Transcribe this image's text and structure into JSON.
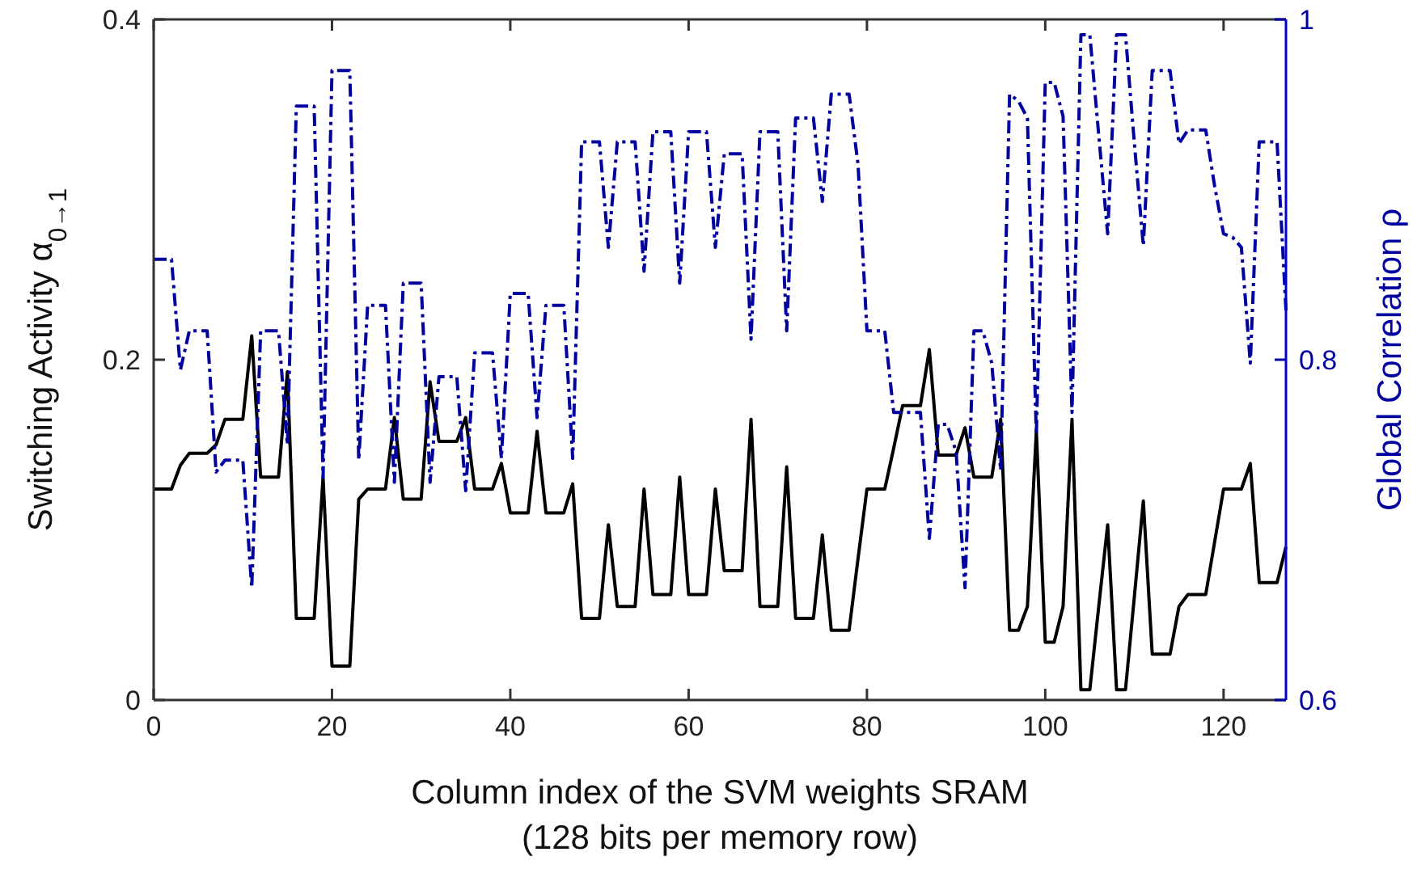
{
  "chart_data": {
    "type": "line",
    "xlabel": "Column index of the SVM weights SRAM\n(128 bits per memory row)",
    "ylabel": "Switching Activity α$_{0→1}$",
    "y2label": "Global Correlation ρ",
    "x": [
      0,
      1,
      2,
      3,
      4,
      5,
      6,
      7,
      8,
      9,
      10,
      11,
      12,
      13,
      14,
      15,
      16,
      17,
      18,
      19,
      20,
      21,
      22,
      23,
      24,
      25,
      26,
      27,
      28,
      29,
      30,
      31,
      32,
      33,
      34,
      35,
      36,
      37,
      38,
      39,
      40,
      41,
      42,
      43,
      44,
      45,
      46,
      47,
      48,
      49,
      50,
      51,
      52,
      53,
      54,
      55,
      56,
      57,
      58,
      59,
      60,
      61,
      62,
      63,
      64,
      65,
      66,
      67,
      68,
      69,
      70,
      71,
      72,
      73,
      74,
      75,
      76,
      77,
      78,
      79,
      80,
      81,
      82,
      83,
      84,
      85,
      86,
      87,
      88,
      89,
      90,
      91,
      92,
      93,
      94,
      95,
      96,
      97,
      98,
      99,
      100,
      101,
      102,
      103,
      104,
      105,
      106,
      107,
      108,
      109,
      110,
      111,
      112,
      113,
      114,
      115,
      116,
      117,
      118,
      119,
      120,
      121,
      122,
      123,
      124,
      125,
      126,
      127
    ],
    "xlim": [
      0,
      127
    ],
    "xticks": [
      0,
      20,
      40,
      60,
      80,
      100,
      120
    ],
    "ylim": [
      0,
      0.4
    ],
    "yticks": [
      0,
      0.2,
      0.4
    ],
    "y2lim": [
      0.6,
      1
    ],
    "y2ticks": [
      0.6,
      0.8,
      1
    ],
    "grid": false,
    "marker": "none",
    "series": [
      {
        "color": "#000000",
        "line_style": "solid",
        "values": [
          0.124,
          0.124,
          0.124,
          0.138,
          0.145,
          0.145,
          0.145,
          0.15,
          0.165,
          0.165,
          0.165,
          0.214,
          0.131,
          0.131,
          0.131,
          0.193,
          0.048,
          0.048,
          0.048,
          0.131,
          0.02,
          0.02,
          0.02,
          0.118,
          0.124,
          0.124,
          0.124,
          0.166,
          0.118,
          0.118,
          0.118,
          0.187,
          0.152,
          0.152,
          0.152,
          0.166,
          0.124,
          0.124,
          0.124,
          0.139,
          0.11,
          0.11,
          0.11,
          0.158,
          0.11,
          0.11,
          0.11,
          0.127,
          0.048,
          0.048,
          0.048,
          0.103,
          0.055,
          0.055,
          0.055,
          0.124,
          0.062,
          0.062,
          0.062,
          0.131,
          0.062,
          0.062,
          0.062,
          0.124,
          0.076,
          0.076,
          0.076,
          0.165,
          0.055,
          0.055,
          0.055,
          0.137,
          0.048,
          0.048,
          0.048,
          0.097,
          0.041,
          0.041,
          0.041,
          0.083,
          0.124,
          0.124,
          0.124,
          0.148,
          0.173,
          0.173,
          0.173,
          0.206,
          0.144,
          0.144,
          0.144,
          0.16,
          0.131,
          0.131,
          0.131,
          0.165,
          0.041,
          0.041,
          0.055,
          0.158,
          0.034,
          0.034,
          0.055,
          0.165,
          0.006,
          0.006,
          0.055,
          0.103,
          0.006,
          0.006,
          0.061,
          0.117,
          0.027,
          0.027,
          0.027,
          0.055,
          0.062,
          0.062,
          0.062,
          0.093,
          0.124,
          0.124,
          0.124,
          0.139,
          0.069,
          0.069,
          0.069,
          0.09
        ]
      },
      {
        "color": "#0000a0",
        "axis": "y2",
        "line_style": "dashdot",
        "values": [
          0.859,
          0.859,
          0.859,
          0.794,
          0.817,
          0.817,
          0.817,
          0.734,
          0.741,
          0.741,
          0.741,
          0.666,
          0.817,
          0.817,
          0.817,
          0.75,
          0.949,
          0.949,
          0.949,
          0.731,
          0.97,
          0.97,
          0.97,
          0.741,
          0.832,
          0.832,
          0.832,
          0.728,
          0.845,
          0.845,
          0.845,
          0.728,
          0.79,
          0.79,
          0.79,
          0.723,
          0.804,
          0.804,
          0.804,
          0.742,
          0.839,
          0.839,
          0.839,
          0.766,
          0.832,
          0.832,
          0.832,
          0.742,
          0.928,
          0.928,
          0.928,
          0.866,
          0.928,
          0.928,
          0.928,
          0.852,
          0.934,
          0.934,
          0.934,
          0.845,
          0.934,
          0.934,
          0.934,
          0.866,
          0.921,
          0.921,
          0.921,
          0.812,
          0.934,
          0.934,
          0.934,
          0.817,
          0.942,
          0.942,
          0.942,
          0.893,
          0.956,
          0.956,
          0.956,
          0.915,
          0.817,
          0.817,
          0.817,
          0.769,
          0.769,
          0.769,
          0.769,
          0.695,
          0.762,
          0.762,
          0.746,
          0.666,
          0.817,
          0.817,
          0.798,
          0.735,
          0.956,
          0.952,
          0.942,
          0.756,
          0.963,
          0.963,
          0.943,
          0.769,
          0.991,
          0.991,
          0.932,
          0.874,
          0.991,
          0.991,
          0.927,
          0.867,
          0.97,
          0.97,
          0.97,
          0.927,
          0.935,
          0.935,
          0.935,
          0.902,
          0.874,
          0.872,
          0.866,
          0.798,
          0.928,
          0.928,
          0.928,
          0.829
        ]
      }
    ]
  }
}
